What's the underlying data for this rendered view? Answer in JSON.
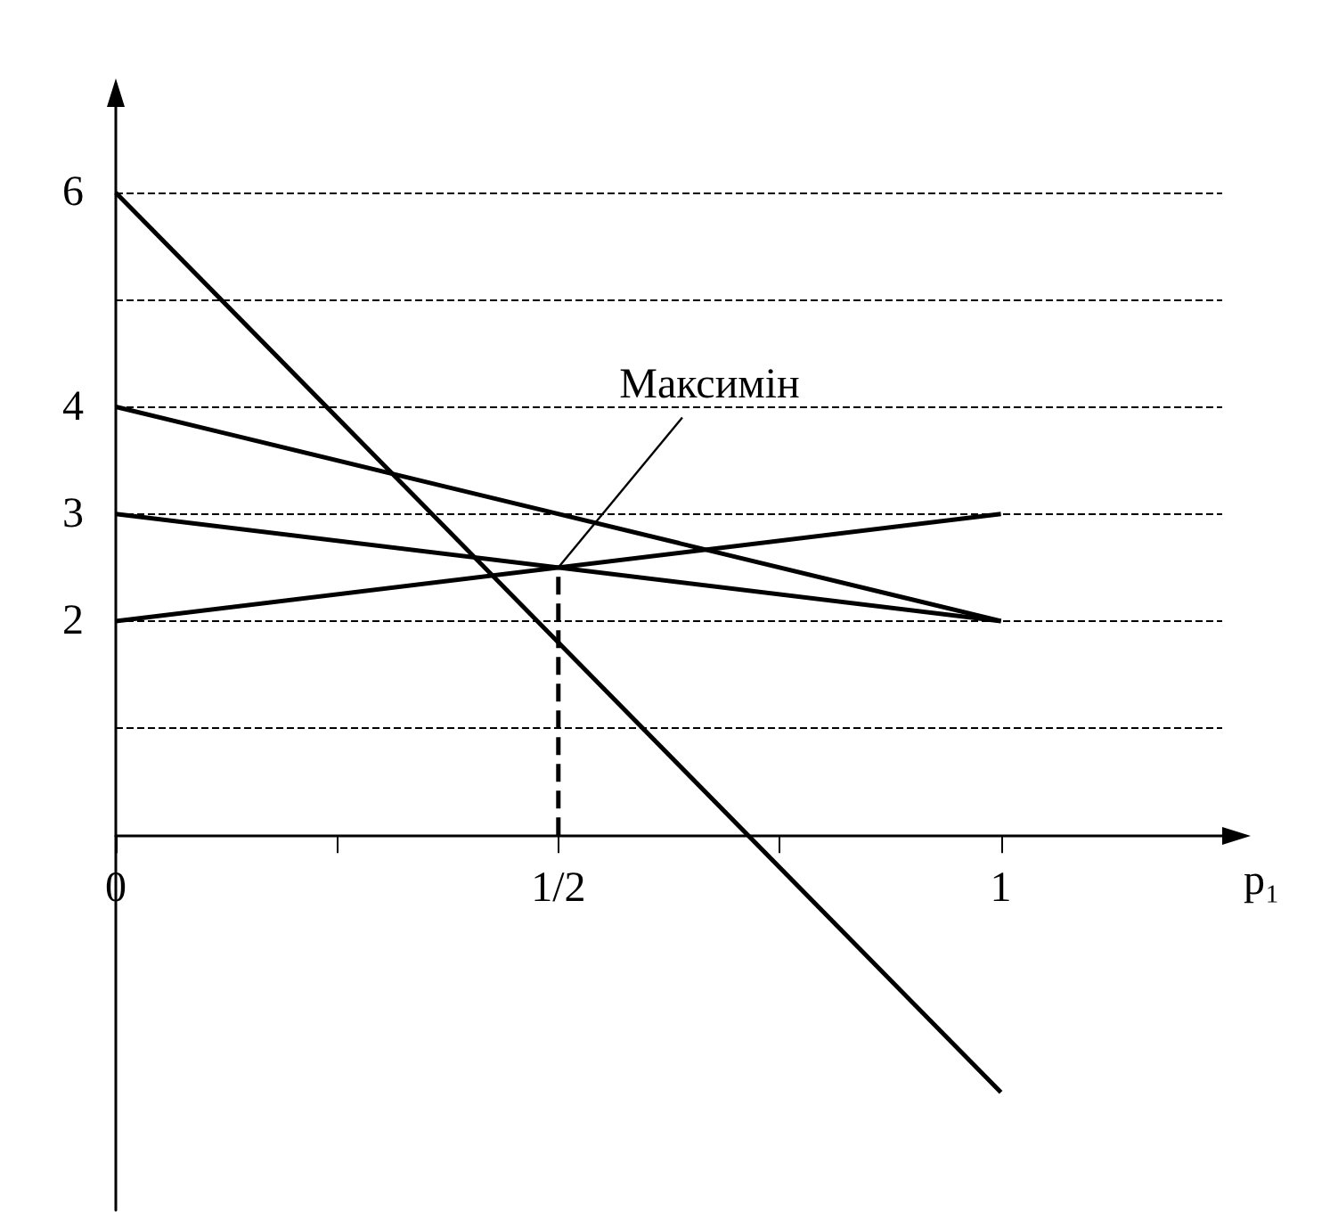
{
  "chart_data": {
    "type": "line",
    "xlabel": "p₁",
    "xlim": [
      0,
      1.25
    ],
    "ylim": [
      -3.5,
      6.8
    ],
    "xticks": [
      0,
      {
        "value": 0.25,
        "label": null
      },
      {
        "value": 0.5,
        "label": "1/2"
      },
      {
        "value": 0.75,
        "label": null
      },
      1
    ],
    "yticks": [
      {
        "value": 1,
        "label": null
      },
      2,
      3,
      4,
      {
        "value": 5,
        "label": null
      },
      6
    ],
    "x": [
      0,
      1
    ],
    "grid": "y",
    "marker": "none",
    "series": [
      {
        "color": "#000000",
        "values": [
          6,
          -2.4
        ]
      },
      {
        "color": "#000000",
        "values": [
          4,
          2
        ]
      },
      {
        "color": "#000000",
        "values": [
          3,
          2
        ]
      },
      {
        "color": "#000000",
        "values": [
          2,
          3
        ]
      },
      {
        "color": "#000000",
        "x": [
          0.5,
          0.5
        ],
        "values": [
          0,
          2.5
        ],
        "line_style": "dashed"
      }
    ],
    "annotations": [
      {
        "text": "Максимін",
        "x": 0.5,
        "y": 2.5
      }
    ]
  }
}
